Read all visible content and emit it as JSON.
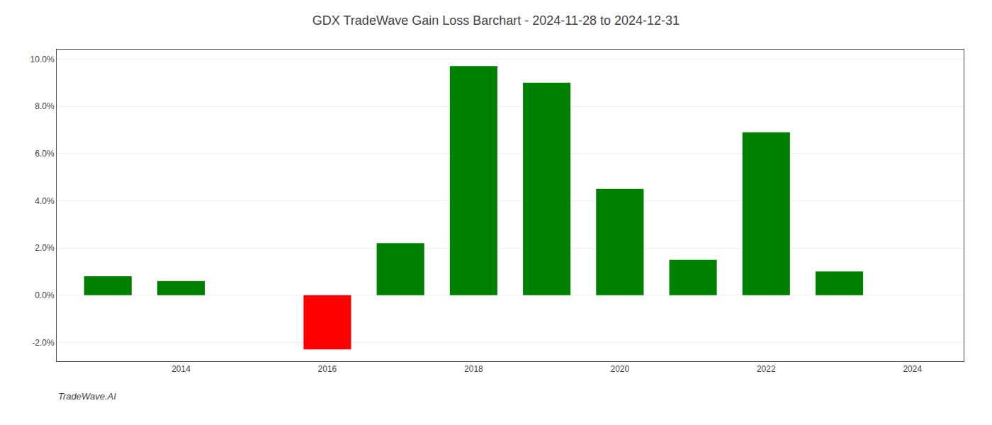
{
  "chart_data": {
    "type": "bar",
    "title": "GDX TradeWave Gain Loss Barchart - 2024-11-28 to 2024-12-31",
    "annotations": [
      "TradeWave.AI"
    ],
    "x": [
      2013,
      2014,
      2016,
      2017,
      2018,
      2019,
      2020,
      2021,
      2022,
      2023
    ],
    "values": [
      0.008,
      0.006,
      -0.023,
      0.022,
      0.097,
      0.09,
      0.045,
      0.015,
      0.069,
      0.01
    ],
    "colors": [
      "#008000",
      "#008000",
      "#ff0000",
      "#008000",
      "#008000",
      "#008000",
      "#008000",
      "#008000",
      "#008000",
      "#008000"
    ],
    "xlim": [
      2012.3,
      2024.7
    ],
    "xticks": [
      2014,
      2016,
      2018,
      2020,
      2022,
      2024
    ],
    "ylim": [
      -0.028,
      0.104
    ],
    "yticks": [
      {
        "value": -0.02,
        "label": "-2.0%"
      },
      {
        "value": 0.0,
        "label": "0.0%"
      },
      {
        "value": 0.02,
        "label": "2.0%"
      },
      {
        "value": 0.04,
        "label": "4.0%"
      },
      {
        "value": 0.06,
        "label": "6.0%"
      },
      {
        "value": 0.08,
        "label": "8.0%"
      },
      {
        "value": 0.1,
        "label": "10.0%"
      }
    ],
    "grid": true
  }
}
